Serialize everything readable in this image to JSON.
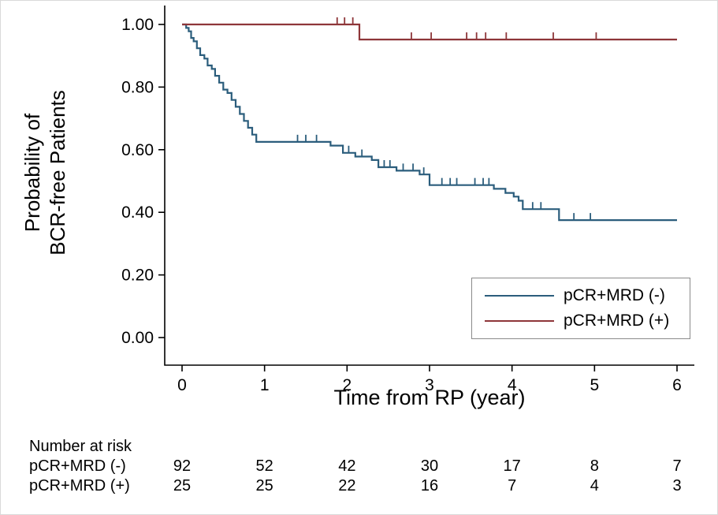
{
  "figure": {
    "background": "#ffffff",
    "border_color": "#d9d9d9"
  },
  "chart_data": {
    "type": "line",
    "subtype": "kaplan_meier_step",
    "title": "",
    "xlabel": "Time from RP (year)",
    "ylabel": "Probability of BCR-free Patients",
    "ylabel_lines": [
      "Probability of",
      "BCR-free Patients"
    ],
    "xlim": [
      0,
      6
    ],
    "ylim": [
      0,
      1
    ],
    "xticks": [
      0,
      1,
      2,
      3,
      4,
      5,
      6
    ],
    "ytick_labels": [
      "0.00",
      "0.20",
      "0.40",
      "0.60",
      "0.80",
      "1.00"
    ],
    "grid": false,
    "legend": {
      "position": "lower-right",
      "border": true
    },
    "series": [
      {
        "name": "pCR+MRD (-)",
        "color": "#2b5d7c",
        "steps": [
          [
            0.0,
            1.0
          ],
          [
            0.05,
            0.989
          ],
          [
            0.08,
            0.978
          ],
          [
            0.11,
            0.957
          ],
          [
            0.14,
            0.946
          ],
          [
            0.18,
            0.924
          ],
          [
            0.22,
            0.902
          ],
          [
            0.27,
            0.891
          ],
          [
            0.31,
            0.869
          ],
          [
            0.36,
            0.858
          ],
          [
            0.4,
            0.836
          ],
          [
            0.45,
            0.814
          ],
          [
            0.5,
            0.792
          ],
          [
            0.55,
            0.781
          ],
          [
            0.6,
            0.759
          ],
          [
            0.65,
            0.737
          ],
          [
            0.7,
            0.714
          ],
          [
            0.75,
            0.692
          ],
          [
            0.8,
            0.67
          ],
          [
            0.85,
            0.648
          ],
          [
            0.9,
            0.625
          ],
          [
            1.8,
            0.613
          ],
          [
            1.95,
            0.59
          ],
          [
            2.1,
            0.578
          ],
          [
            2.3,
            0.567
          ],
          [
            2.38,
            0.544
          ],
          [
            2.6,
            0.533
          ],
          [
            2.88,
            0.521
          ],
          [
            3.0,
            0.487
          ],
          [
            3.78,
            0.475
          ],
          [
            3.92,
            0.462
          ],
          [
            4.02,
            0.45
          ],
          [
            4.08,
            0.437
          ],
          [
            4.13,
            0.41
          ],
          [
            4.57,
            0.375
          ],
          [
            6.0,
            0.375
          ]
        ],
        "censors": [
          [
            1.4,
            0.625
          ],
          [
            1.5,
            0.625
          ],
          [
            1.63,
            0.625
          ],
          [
            2.02,
            0.59
          ],
          [
            2.18,
            0.578
          ],
          [
            2.45,
            0.544
          ],
          [
            2.52,
            0.544
          ],
          [
            2.68,
            0.533
          ],
          [
            2.8,
            0.533
          ],
          [
            2.93,
            0.521
          ],
          [
            3.15,
            0.487
          ],
          [
            3.25,
            0.487
          ],
          [
            3.33,
            0.487
          ],
          [
            3.55,
            0.487
          ],
          [
            3.65,
            0.487
          ],
          [
            3.72,
            0.487
          ],
          [
            4.25,
            0.41
          ],
          [
            4.35,
            0.41
          ],
          [
            4.75,
            0.375
          ],
          [
            4.95,
            0.375
          ]
        ]
      },
      {
        "name": "pCR+MRD (+)",
        "color": "#8e3639",
        "steps": [
          [
            0.0,
            1.0
          ],
          [
            2.15,
            0.952
          ],
          [
            6.0,
            0.952
          ]
        ],
        "censors": [
          [
            1.88,
            1.0
          ],
          [
            1.97,
            1.0
          ],
          [
            2.07,
            1.0
          ],
          [
            2.78,
            0.952
          ],
          [
            3.02,
            0.952
          ],
          [
            3.45,
            0.952
          ],
          [
            3.57,
            0.952
          ],
          [
            3.68,
            0.952
          ],
          [
            3.93,
            0.952
          ],
          [
            4.5,
            0.952
          ],
          [
            5.02,
            0.952
          ]
        ]
      }
    ]
  },
  "risk_table": {
    "title": "Number at risk",
    "rows": [
      {
        "label": "pCR+MRD (-)",
        "counts": [
          92,
          52,
          42,
          30,
          17,
          8,
          7
        ]
      },
      {
        "label": "pCR+MRD (+)",
        "counts": [
          25,
          25,
          22,
          16,
          7,
          4,
          3
        ]
      }
    ]
  }
}
